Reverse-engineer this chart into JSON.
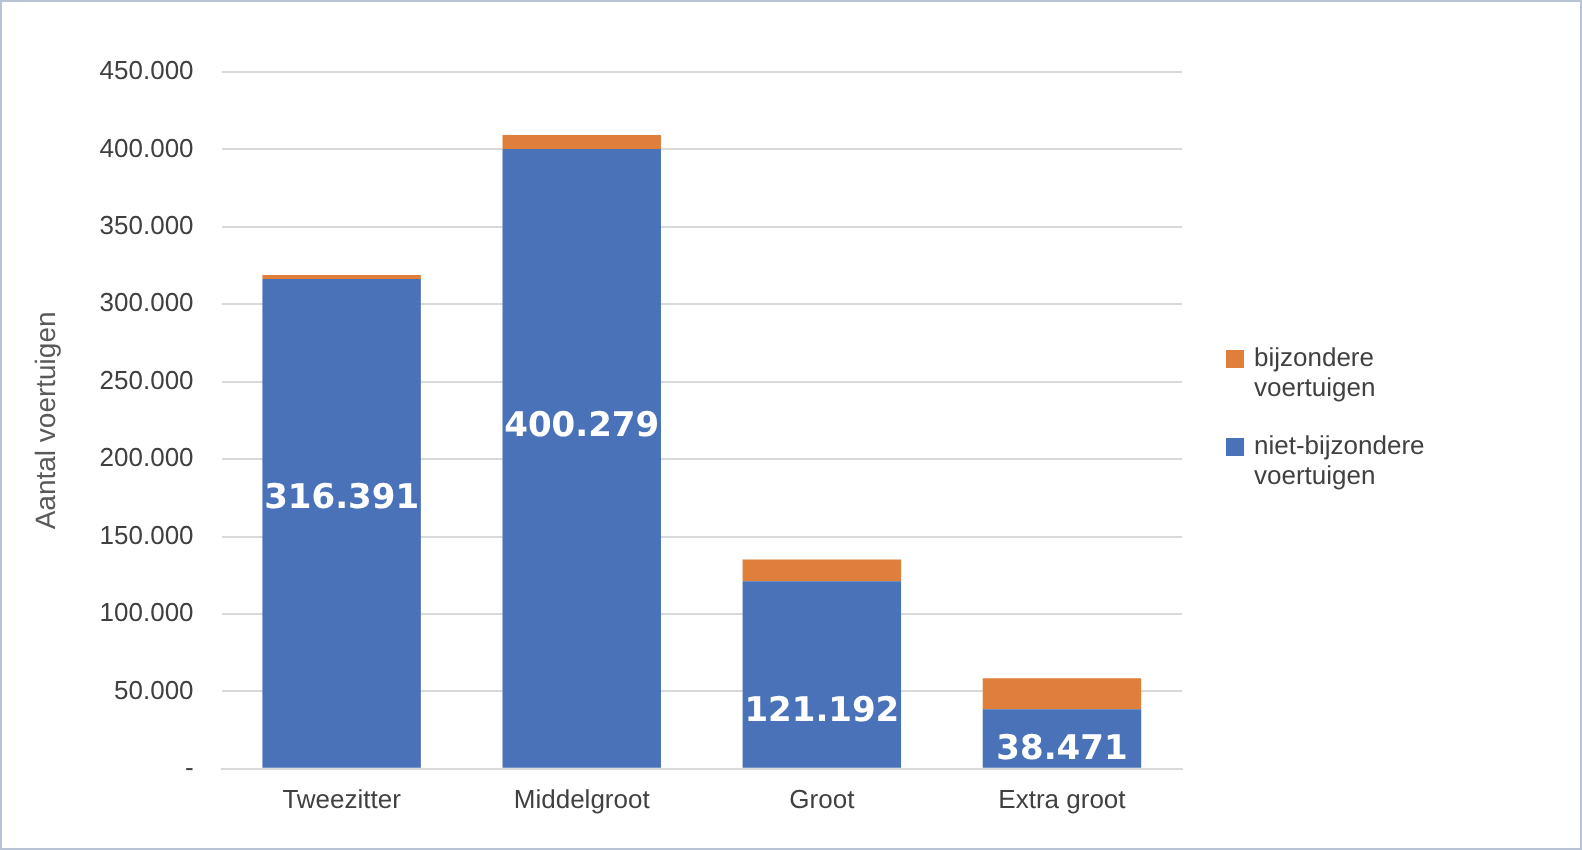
{
  "chart_data": {
    "type": "bar",
    "stacked": true,
    "ylabel": "Aantal voertuigen",
    "categories": [
      "Tweezitter",
      "Middelgroot",
      "Groot",
      "Extra groot"
    ],
    "series": [
      {
        "name": "niet-bijzondere voertuigen",
        "color": "#4a72b8",
        "values": [
          316391,
          400279,
          121192,
          38471
        ],
        "value_labels": [
          "316.391",
          "400.279",
          "121.192",
          "38.471"
        ]
      },
      {
        "name": "bijzondere voertuigen",
        "color": "#e07e3c",
        "values": [
          2500,
          9000,
          14000,
          20000
        ]
      }
    ],
    "ylim": [
      0,
      450000
    ],
    "yticks": [
      {
        "value": 0,
        "label": "-"
      },
      {
        "value": 50000,
        "label": "50.000"
      },
      {
        "value": 100000,
        "label": "100.000"
      },
      {
        "value": 150000,
        "label": "150.000"
      },
      {
        "value": 200000,
        "label": "200.000"
      },
      {
        "value": 250000,
        "label": "250.000"
      },
      {
        "value": 300000,
        "label": "300.000"
      },
      {
        "value": 350000,
        "label": "350.000"
      },
      {
        "value": 400000,
        "label": "400.000"
      },
      {
        "value": 450000,
        "label": "450.000"
      }
    ],
    "grid": "y",
    "legend": "right"
  }
}
